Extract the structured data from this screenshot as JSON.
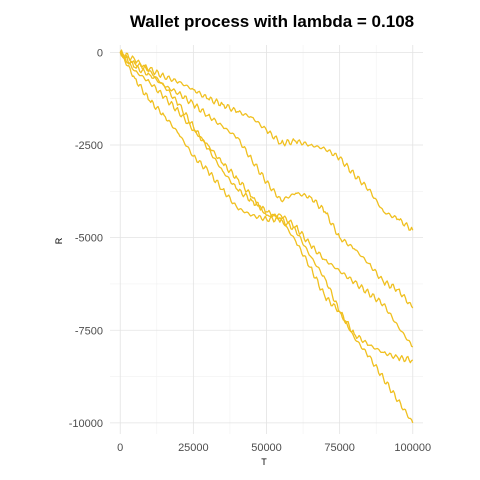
{
  "chart_data": {
    "type": "line",
    "title": "Wallet process with lambda =  0.108",
    "xlabel": "T",
    "ylabel": "R",
    "xlim": [
      -3500,
      103500
    ],
    "ylim": [
      -10300,
      200
    ],
    "x_ticks": [
      0,
      25000,
      50000,
      75000,
      100000
    ],
    "x_tick_labels": [
      "0",
      "25000",
      "50000",
      "75000",
      "100000"
    ],
    "y_ticks": [
      0,
      -2500,
      -5000,
      -7500,
      -10000
    ],
    "y_tick_labels": [
      "0",
      "-2500",
      "-5000",
      "-7500",
      "-10000"
    ],
    "grid": true,
    "legend": "none",
    "color": "#F0C020",
    "series": [
      {
        "x": [
          0,
          5000,
          10000,
          15000,
          20000,
          25000,
          30000,
          35000,
          40000,
          45000,
          50000,
          55000,
          60000,
          65000,
          70000,
          75000,
          80000,
          85000,
          90000,
          95000,
          100000
        ],
        "values": [
          0,
          -300,
          -450,
          -650,
          -800,
          -1000,
          -1250,
          -1400,
          -1600,
          -1750,
          -2100,
          -2450,
          -2400,
          -2500,
          -2600,
          -2850,
          -3300,
          -3700,
          -4300,
          -4500,
          -4800
        ]
      },
      {
        "x": [
          0,
          5000,
          10000,
          15000,
          20000,
          25000,
          30000,
          35000,
          40000,
          45000,
          50000,
          55000,
          60000,
          65000,
          70000,
          75000,
          80000,
          85000,
          90000,
          95000,
          100000
        ],
        "values": [
          0,
          -400,
          -600,
          -900,
          -1100,
          -1400,
          -1700,
          -2000,
          -2300,
          -2900,
          -3500,
          -4000,
          -3800,
          -3900,
          -4300,
          -5000,
          -5300,
          -5700,
          -6200,
          -6400,
          -6900
        ]
      },
      {
        "x": [
          0,
          5000,
          10000,
          15000,
          20000,
          25000,
          30000,
          35000,
          40000,
          45000,
          50000,
          55000,
          60000,
          65000,
          70000,
          75000,
          80000,
          85000,
          90000,
          95000,
          100000
        ],
        "values": [
          0,
          -500,
          -800,
          -1200,
          -1600,
          -2100,
          -2500,
          -3000,
          -3400,
          -3900,
          -4400,
          -4400,
          -4700,
          -5200,
          -5600,
          -5900,
          -6200,
          -6500,
          -6800,
          -7400,
          -7950
        ]
      },
      {
        "x": [
          0,
          5000,
          10000,
          15000,
          20000,
          25000,
          30000,
          35000,
          40000,
          45000,
          50000,
          55000,
          60000,
          65000,
          70000,
          75000,
          80000,
          85000,
          90000,
          95000,
          100000
        ],
        "values": [
          0,
          -700,
          -1300,
          -1700,
          -2200,
          -2800,
          -3200,
          -3700,
          -4200,
          -4400,
          -4500,
          -4500,
          -4800,
          -5500,
          -6100,
          -7000,
          -7600,
          -7900,
          -8100,
          -8250,
          -8300
        ]
      },
      {
        "x": [
          0,
          5000,
          10000,
          15000,
          20000,
          25000,
          30000,
          35000,
          40000,
          45000,
          50000,
          55000,
          60000,
          65000,
          70000,
          75000,
          80000,
          85000,
          90000,
          95000,
          100000
        ],
        "values": [
          0,
          -200,
          -500,
          -900,
          -1400,
          -2000,
          -2600,
          -3200,
          -3700,
          -4000,
          -4300,
          -4500,
          -5100,
          -5800,
          -6600,
          -7000,
          -7700,
          -8200,
          -8800,
          -9400,
          -10000
        ]
      }
    ]
  }
}
